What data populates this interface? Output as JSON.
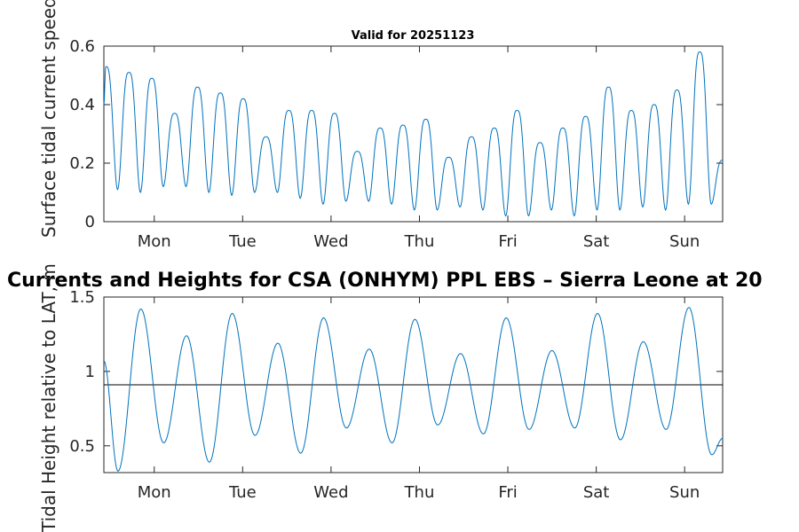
{
  "chart_data": [
    {
      "type": "line",
      "title": "Valid for 20251123",
      "ylabel": "Surface tidal current speed, knots",
      "xlabel": "",
      "xlim": [
        0,
        7
      ],
      "ylim": [
        0,
        0.6
      ],
      "yticks": [
        0,
        0.2,
        0.4,
        0.6
      ],
      "ytick_labels": [
        "0",
        "0.2",
        "0.4",
        "0.6"
      ],
      "xticks": [
        0.57,
        1.57,
        2.57,
        3.57,
        4.57,
        5.57,
        6.57
      ],
      "xtick_labels": [
        "Mon",
        "Tue",
        "Wed",
        "Thu",
        "Fri",
        "Sat",
        "Sun"
      ],
      "series": [
        {
          "name": "current speed",
          "color": "#0072BD",
          "peaks": [
            0.53,
            0.51,
            0.49,
            0.37,
            0.46,
            0.44,
            0.42,
            0.29,
            0.38,
            0.38,
            0.37,
            0.24,
            0.32,
            0.33,
            0.35,
            0.22,
            0.29,
            0.32,
            0.38,
            0.27,
            0.32,
            0.36,
            0.46,
            0.38,
            0.4,
            0.45,
            0.58
          ],
          "troughs": [
            0.11,
            0.1,
            0.12,
            0.12,
            0.1,
            0.09,
            0.1,
            0.1,
            0.08,
            0.06,
            0.07,
            0.07,
            0.06,
            0.04,
            0.04,
            0.05,
            0.04,
            0.02,
            0.02,
            0.04,
            0.02,
            0.04,
            0.04,
            0.05,
            0.04,
            0.06,
            0.06
          ]
        }
      ]
    },
    {
      "type": "line",
      "title": "Currents and Heights for CSA (ONHYM) PPL EBS  – Sierra Leone at 20",
      "ylabel": "Tidal Height relative to LAT, m",
      "xlabel": "",
      "xlim": [
        0,
        7
      ],
      "ylim": [
        0.32,
        1.5
      ],
      "yticks": [
        0.5,
        1,
        1.5
      ],
      "ytick_labels": [
        "0.5",
        "1",
        "1.5"
      ],
      "xticks": [
        0.57,
        1.57,
        2.57,
        3.57,
        4.57,
        5.57,
        6.57
      ],
      "xtick_labels": [
        "Mon",
        "Tue",
        "Wed",
        "Thu",
        "Fri",
        "Sat",
        "Sun"
      ],
      "reference_line": 0.91,
      "series": [
        {
          "name": "tidal height",
          "color": "#0072BD",
          "start": 1.07,
          "highs": [
            1.42,
            1.24,
            1.39,
            1.19,
            1.36,
            1.15,
            1.35,
            1.12,
            1.36,
            1.14,
            1.39,
            1.2,
            1.43
          ],
          "lows": [
            0.33,
            0.52,
            0.39,
            0.57,
            0.45,
            0.62,
            0.52,
            0.64,
            0.58,
            0.61,
            0.62,
            0.54,
            0.61,
            0.44
          ],
          "end": 0.55
        }
      ]
    }
  ]
}
